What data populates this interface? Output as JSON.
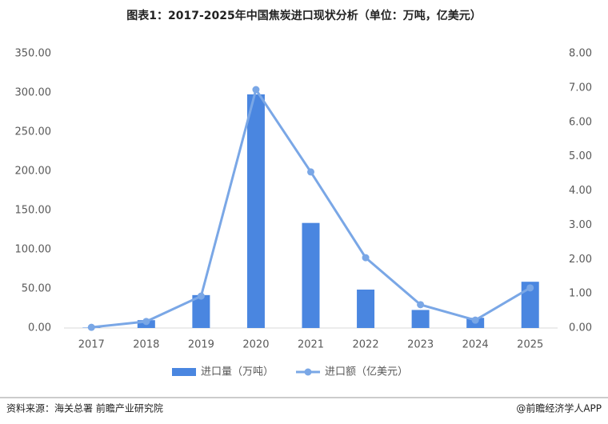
{
  "chart_data": {
    "type": "bar-line",
    "title": "图表1：2017-2025年中国焦炭进口现状分析（单位：万吨，亿美元）",
    "categories": [
      "2017",
      "2018",
      "2019",
      "2020",
      "2021",
      "2022",
      "2023",
      "2024",
      "2025"
    ],
    "series": [
      {
        "name": "进口量（万吨）",
        "type": "bar",
        "color": "#4a86e0",
        "values": [
          0.5,
          10,
          42,
          298,
          134,
          49,
          23,
          13,
          59
        ]
      },
      {
        "name": "进口额（亿美元）",
        "type": "line",
        "axis": "y2",
        "color": "#7aa7e6",
        "values": [
          0.02,
          0.19,
          0.93,
          6.95,
          4.55,
          2.05,
          0.68,
          0.23,
          1.17
        ]
      }
    ],
    "ylim": [
      0,
      350
    ],
    "yticks": [
      {
        "value": 0,
        "label": "0.00"
      },
      {
        "value": 50,
        "label": "50.00"
      },
      {
        "value": 100,
        "label": "100.00"
      },
      {
        "value": 150,
        "label": "150.00"
      },
      {
        "value": 200,
        "label": "200.00"
      },
      {
        "value": 250,
        "label": "250.00"
      },
      {
        "value": 300,
        "label": "300.00"
      },
      {
        "value": 350,
        "label": "350.00"
      }
    ],
    "y2lim": [
      0,
      8
    ],
    "y2ticks": [
      {
        "value": 0,
        "label": "0.00"
      },
      {
        "value": 1,
        "label": "1.00"
      },
      {
        "value": 2,
        "label": "2.00"
      },
      {
        "value": 3,
        "label": "3.00"
      },
      {
        "value": 4,
        "label": "4.00"
      },
      {
        "value": 5,
        "label": "5.00"
      },
      {
        "value": 6,
        "label": "6.00"
      },
      {
        "value": 7,
        "label": "7.00"
      },
      {
        "value": 8,
        "label": "8.00"
      }
    ],
    "source": "资料来源：海关总署  前瞻产业研究院",
    "credit": "@前瞻经济学人APP"
  }
}
